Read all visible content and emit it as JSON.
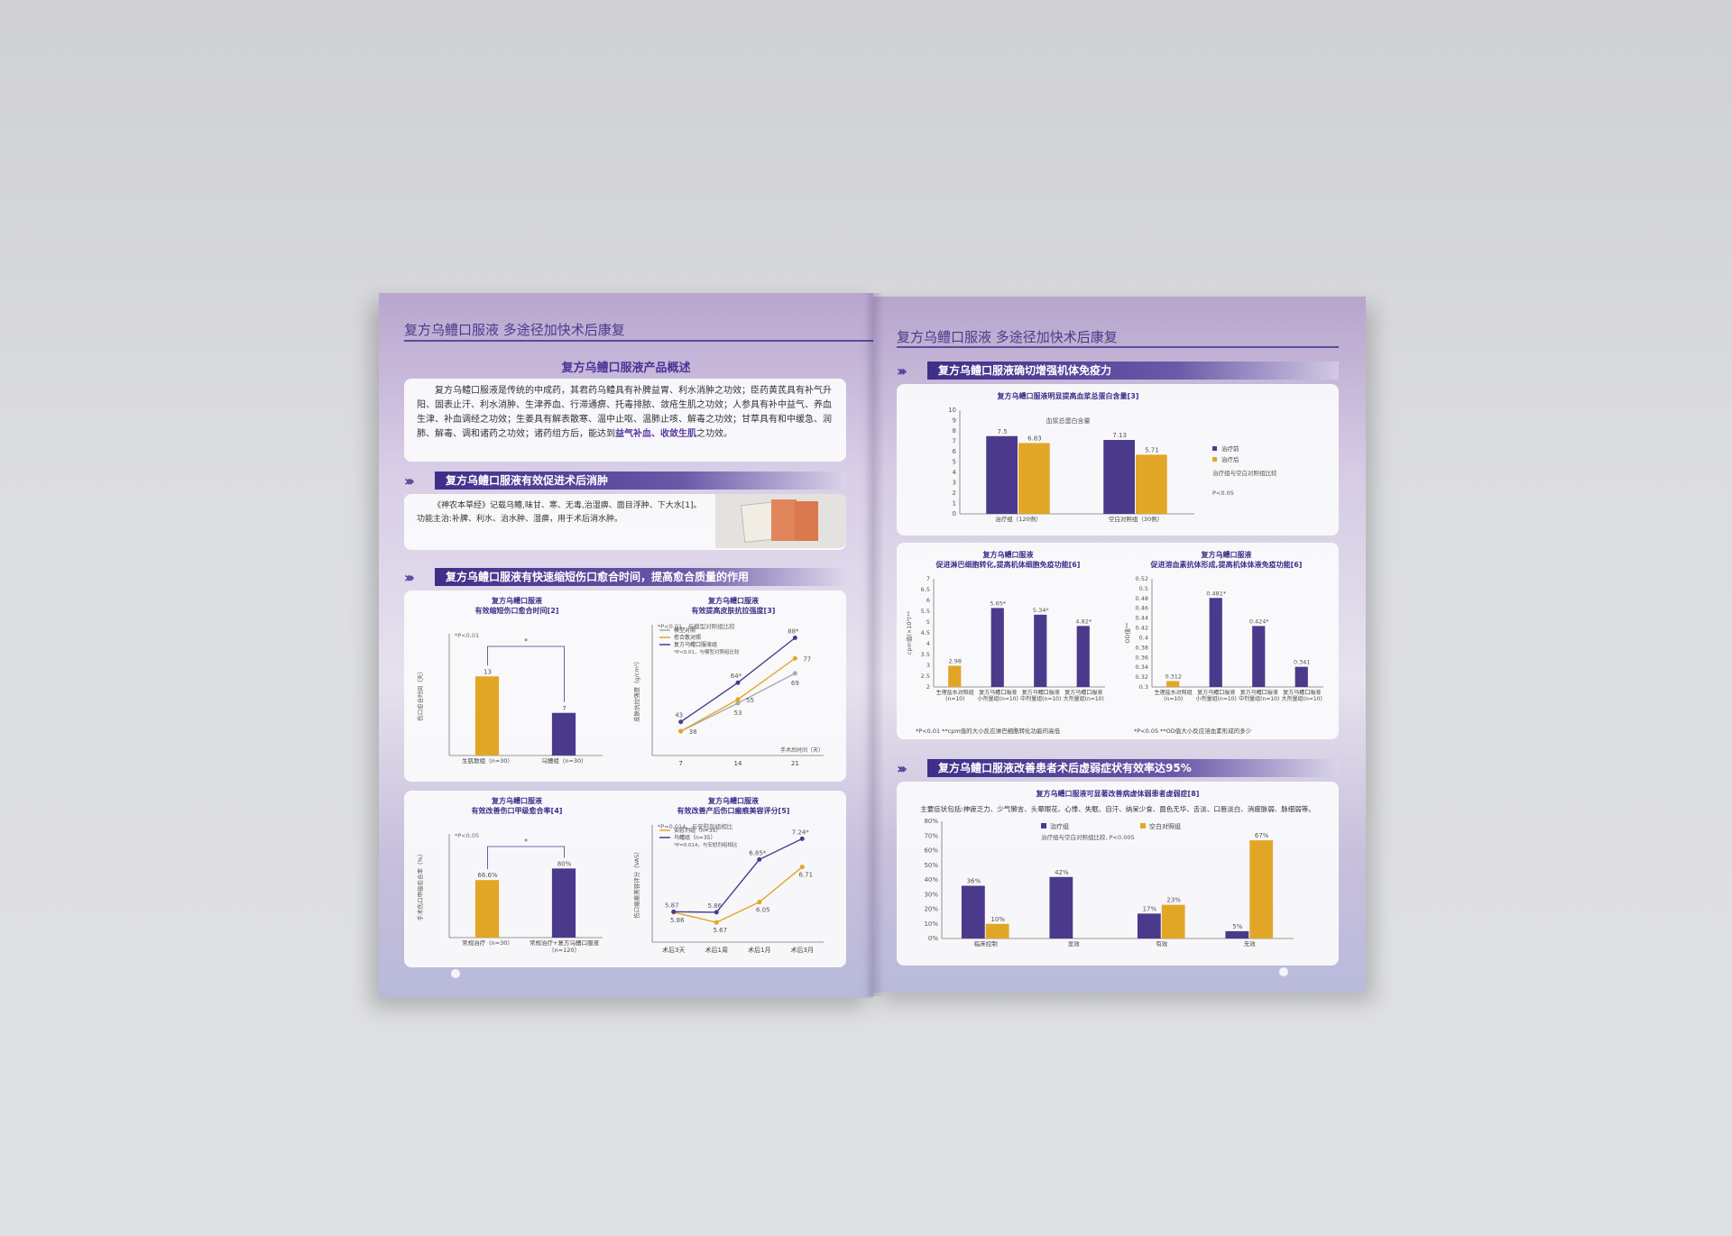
{
  "colors": {
    "purple": "#4b3a8c",
    "gold": "#e2a626",
    "gray": "#a9a9ad",
    "accent": "#4a3596"
  },
  "left": {
    "header": "复方乌鳢口服液 多途径加快术后康复",
    "overview": {
      "title": "复方乌鳢口服液产品概述",
      "text_a": "复方乌鳢口服液是传统的中成药，其君药乌鳢具有补脾益胃、利水消肿之功效；臣药黄芪具有补气升阳、固表止汗、利水消肿、生津养血、行滞通痹、托毒排脓、敛疮生肌之功效；人参具有补中益气、养血生津、补血调经之功效；生姜具有解表散寒、温中止呕、温肺止咳、解毒之功效；甘草具有和中缓急、润肺、解毒、调和诸药之功效；诸药组方后，能达到",
      "highlight": "益气补血、收敛生肌",
      "text_b": "之功效。"
    },
    "swelling": {
      "banner": "复方乌鳢口服液有效促进术后消肿",
      "line1": "《神农本草经》记载乌鳢,味甘、寒、无毒,治湿痹、面目浮肿、下大水[1]。",
      "line2": "功能主治:补脾、利水、治水肿、湿痹，用于术后消水肿。",
      "image_icon": "ancient-book-image"
    },
    "healing": {
      "banner": "复方乌鳢口服液有快速缩短伤口愈合时间，提高愈合质量的作用"
    }
  },
  "right": {
    "header": "复方乌鳢口服液 多途径加快术后康复",
    "immunity": {
      "banner": "复方乌鳢口服液确切增强机体免疫力"
    },
    "weakness": {
      "banner": "复方乌鳢口服液改善患者术后虚弱症状有效率达95%"
    }
  },
  "chart_data": [
    {
      "id": "c1",
      "type": "bar",
      "title": "复方乌鳢口服液\n有效缩短伤口愈合时间[2]",
      "ylabel": "伤口愈合时间（天）",
      "note": "*P<0.01",
      "sig": "*",
      "categories": [
        "生肌散组（n=30）",
        "乌鳢组（n=30）"
      ],
      "ylim": [
        0,
        20
      ],
      "yticks": [],
      "series": [
        {
          "values": [
            13,
            7
          ],
          "labels": [
            "13",
            "7"
          ],
          "colors": [
            "#e2a626",
            "#4b3a8c"
          ]
        }
      ]
    },
    {
      "id": "c2",
      "type": "line",
      "title": "复方乌鳢口服液\n有效提高皮肤抗拉强度[3]",
      "ylabel": "皮肤抗拉强度（g/cm²）",
      "xlabel": "手术后时间（天）",
      "categories": [
        "7",
        "14",
        "21"
      ],
      "ylim": [
        25,
        95
      ],
      "note": "*P<0.01，与模型对照组比较",
      "series": [
        {
          "name": "模型对照",
          "color": "#a9a9ad",
          "values": [
            38,
            53,
            69
          ],
          "labels": [
            "",
            "53",
            "69"
          ]
        },
        {
          "name": "愈合散对照",
          "color": "#e2a626",
          "values": [
            38,
            55,
            77
          ],
          "labels": [
            "38",
            "55",
            "77"
          ]
        },
        {
          "name": "复方乌鳢口服液组",
          "color": "#4b3a8c",
          "values": [
            43,
            64,
            88
          ],
          "labels": [
            "43",
            "64*",
            "88*"
          ]
        }
      ]
    },
    {
      "id": "c3",
      "type": "bar",
      "title": "复方乌鳢口服液\n有效改善伤口甲级愈合率[4]",
      "ylabel": "手术伤口甲级愈合率（%）",
      "note": "*P<0.05",
      "sig": "*",
      "categories": [
        "常规治疗（n=30）",
        "常规治疗+复方乌鳢口服液（n=120）"
      ],
      "ylim": [
        0,
        120
      ],
      "yticks": [],
      "series": [
        {
          "values": [
            66.6,
            80
          ],
          "labels": [
            "66.6%",
            "80%"
          ],
          "colors": [
            "#e2a626",
            "#4b3a8c"
          ]
        }
      ]
    },
    {
      "id": "c4",
      "type": "line",
      "title": "复方乌鳢口服液\n有效改善产后伤口瘢痕美容评分[5]",
      "ylabel": "伤口瘢痕美容评分（VAS）",
      "categories": [
        "术后3天",
        "术后1周",
        "术后1月",
        "术后3月"
      ],
      "ylim": [
        5.3,
        7.5
      ],
      "note": "*P=0.014，与安慰剂组相比",
      "series": [
        {
          "name": "安慰剂组（n=35）",
          "color": "#e2a626",
          "values": [
            5.86,
            5.67,
            6.05,
            6.71
          ],
          "labels": [
            "5.86",
            "5.67",
            "6.05",
            "6.71"
          ]
        },
        {
          "name": "乌鳢组（n=35）",
          "color": "#4b3a8c",
          "values": [
            5.87,
            5.86,
            6.85,
            7.24
          ],
          "labels": [
            "5.87",
            "5.86",
            "6.85*",
            "7.24*"
          ]
        }
      ]
    },
    {
      "id": "c5",
      "type": "bar",
      "title": "复方乌鳢口服液明显提高血浆总蛋白含量[3]",
      "subtitle": "血浆总蛋白含量",
      "categories": [
        "治疗组（120例）",
        "空白对照组（30例）"
      ],
      "ylim": [
        0,
        10
      ],
      "yticks": [
        0,
        1,
        2,
        3,
        4,
        5,
        6,
        7,
        8,
        9,
        10
      ],
      "legend": "right",
      "notes": [
        "治疗组与空白对照组比较",
        "P<0.05"
      ],
      "series": [
        {
          "name": "治疗前",
          "color": "#4b3a8c",
          "values": [
            7.5,
            7.13
          ],
          "labels": [
            "7.5",
            "7.13"
          ]
        },
        {
          "name": "治疗后",
          "color": "#e2a626",
          "values": [
            6.83,
            5.71
          ],
          "labels": [
            "6.83",
            "5.71"
          ]
        }
      ]
    },
    {
      "id": "c6",
      "type": "bar",
      "title": "复方乌鳢口服液\n促进淋巴细胞转化,提高机体细胞免疫功能[6]",
      "ylabel": "cpm值(×10³)**",
      "categories": [
        "生理盐水对照组(n=10)",
        "复方乌鳢口服液小剂量组(n=10)",
        "复方乌鳢口服液中剂量组(n=10)",
        "复方乌鳢口服液大剂量组(n=10)"
      ],
      "ylim": [
        2,
        7
      ],
      "yticks": [
        2,
        2.5,
        3,
        3.5,
        4,
        4.5,
        5,
        5.5,
        6,
        6.5,
        7
      ],
      "footnote": "*P<0.01  **cpm值的大小反应淋巴细胞转化功能的高低",
      "series": [
        {
          "values": [
            2.98,
            5.65,
            5.34,
            4.82
          ],
          "labels": [
            "2.98",
            "5.65*",
            "5.34*",
            "4.82*"
          ],
          "colors": [
            "#e2a626",
            "#4b3a8c",
            "#4b3a8c",
            "#4b3a8c"
          ]
        }
      ]
    },
    {
      "id": "c7",
      "type": "bar",
      "title": "复方乌鳢口服液\n促进溶血素抗体形成,提高机体体液免疫功能[6]",
      "ylabel": "OD值**",
      "categories": [
        "生理盐水对照组(n=10)",
        "复方乌鳢口服液小剂量组(n=10)",
        "复方乌鳢口服液中剂量组(n=10)",
        "复方乌鳢口服液大剂量组(n=10)"
      ],
      "ylim": [
        0.3,
        0.52
      ],
      "yticks": [
        0.3,
        0.32,
        0.34,
        0.36,
        0.38,
        0.4,
        0.42,
        0.44,
        0.46,
        0.48,
        0.5,
        0.52
      ],
      "footnote": "*P<0.05  **OD值大小反应溶血素形成的多少",
      "series": [
        {
          "values": [
            0.312,
            0.481,
            0.424,
            0.341
          ],
          "labels": [
            "0.312",
            "0.481*",
            "0.424*",
            "0.341"
          ],
          "colors": [
            "#e2a626",
            "#4b3a8c",
            "#4b3a8c",
            "#4b3a8c"
          ]
        }
      ]
    },
    {
      "id": "c8",
      "type": "bar",
      "title": "复方乌鳢口服液可显著改善病虚体弱患者虚弱症[8]",
      "description": "主要症状包括:神疲乏力、少气懒言、头晕眼花、心悸、失眠、自汗、纳呆少食、面色无华、舌淡、口唇淡白、消瘦脉弱、脉细弱等。",
      "note": "治疗组与空白对照组比较, P<0.005",
      "legend": "top",
      "categories": [
        "临床控制",
        "显效",
        "有效",
        "无效"
      ],
      "ylim": [
        0,
        80
      ],
      "yticks": [
        0,
        10,
        20,
        30,
        40,
        50,
        60,
        70,
        80
      ],
      "ytick_suffix": "%",
      "series": [
        {
          "name": "治疗组",
          "color": "#4b3a8c",
          "values": [
            36,
            42,
            17,
            5
          ],
          "labels": [
            "36%",
            "42%",
            "17%",
            "5%"
          ]
        },
        {
          "name": "空白对照组",
          "color": "#e2a626",
          "values": [
            10,
            null,
            23,
            67
          ],
          "labels": [
            "10%",
            "",
            "23%",
            "67%"
          ]
        }
      ]
    }
  ]
}
